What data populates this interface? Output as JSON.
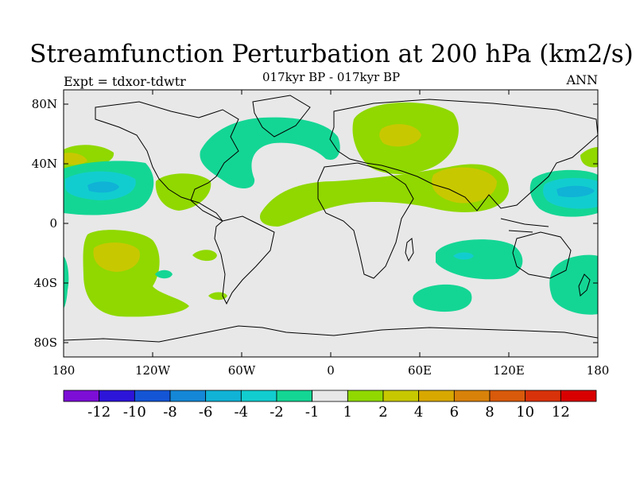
{
  "header": {
    "title": "Streamfunction Perturbation at 200 hPa (km2/s)",
    "subtitle": "017kyr BP - 017kyr BP",
    "left_label": "Expt = tdxor-tdwtr",
    "right_label": "ANN"
  },
  "axes": {
    "lat_ticks": [
      "80N",
      "40N",
      "0",
      "40S",
      "80S"
    ],
    "lon_ticks": [
      "180",
      "120W",
      "60W",
      "0",
      "60E",
      "120E",
      "180"
    ]
  },
  "colorbar": {
    "colors": [
      "#7c0ed6",
      "#2d14d9",
      "#1455d6",
      "#1487d6",
      "#10b2d6",
      "#12cdcf",
      "#14d694",
      "#e8e8e8",
      "#90d800",
      "#c8c800",
      "#d8a800",
      "#d8820a",
      "#d85a0a",
      "#d8320a",
      "#d80000"
    ],
    "labels": [
      "-12",
      "-10",
      "-8",
      "-6",
      "-4",
      "-2",
      "-1",
      "1",
      "2",
      "4",
      "6",
      "8",
      "10",
      "12"
    ]
  },
  "map": {
    "background_color": "#e8e8e8"
  }
}
